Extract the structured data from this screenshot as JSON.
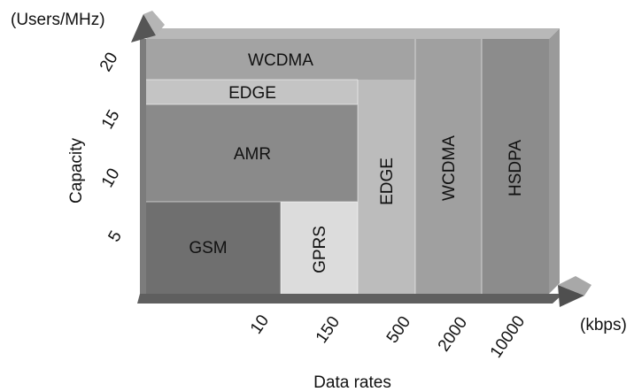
{
  "axes": {
    "y_unit": "(Users/MHz)",
    "y_title": "Capacity",
    "y_ticks": [
      "5",
      "10",
      "15",
      "20"
    ],
    "x_unit": "(kbps)",
    "x_title": "Data rates",
    "x_ticks": [
      "10",
      "150",
      "500",
      "2000",
      "10000"
    ]
  },
  "regions": {
    "wcdma_top": "WCDMA",
    "edge_strip": "EDGE",
    "amr": "AMR",
    "gsm": "GSM",
    "gprs": "GPRS",
    "edge_col": "EDGE",
    "wcdma_col": "WCDMA",
    "hsdpa": "HSDPA"
  },
  "colors": {
    "wcdma": "#a3a3a3",
    "edge_light": "#c4c4c4",
    "amr": "#8a8a8a",
    "gsm": "#6f6f6f",
    "gprs": "#dcdcdc",
    "edge_col": "#bcbcbc",
    "wcdma_col": "#a0a0a0",
    "hsdpa": "#8c8c8c"
  }
}
